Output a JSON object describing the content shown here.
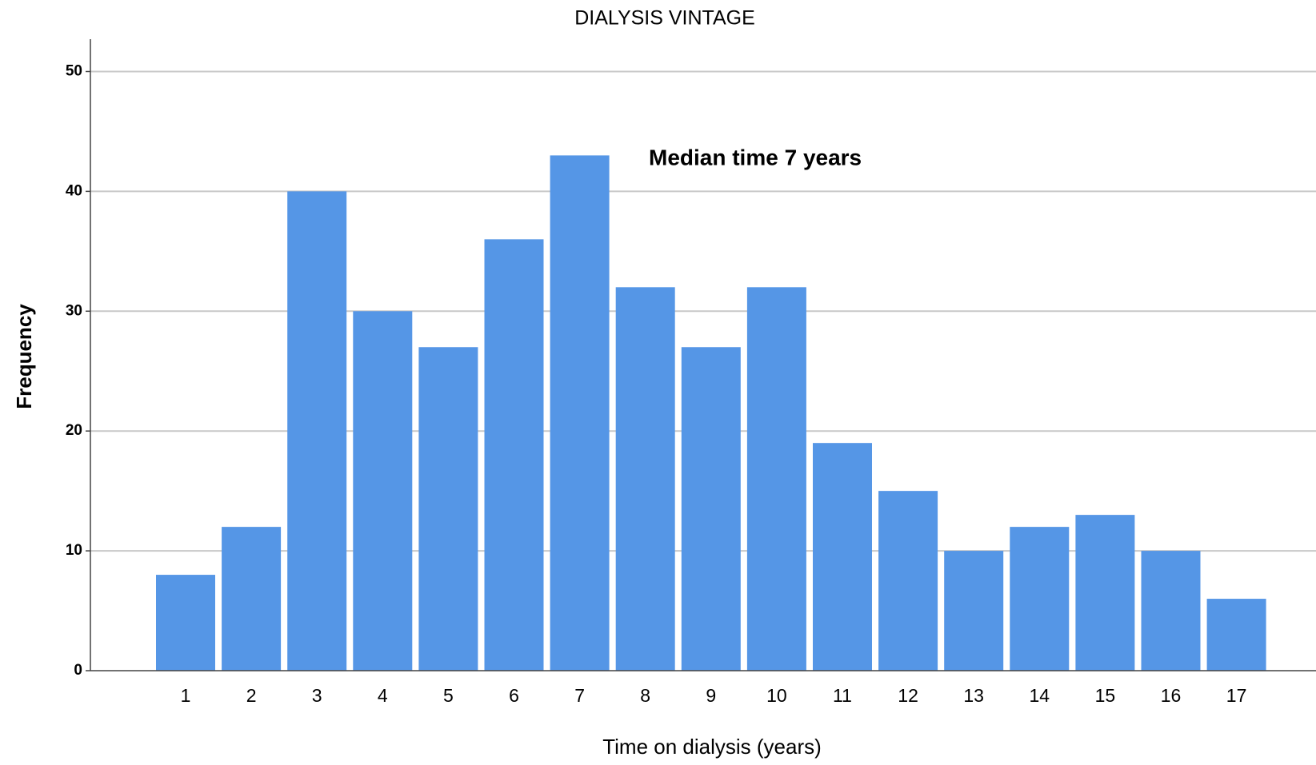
{
  "chart_data": {
    "type": "bar",
    "title": "DIALYSIS VINTAGE",
    "x_label": "Time on dialysis (years)",
    "y_label": "Frequency",
    "annotation": "Median time 7 years",
    "categories": [
      "1",
      "2",
      "3",
      "4",
      "5",
      "6",
      "7",
      "8",
      "9",
      "10",
      "11",
      "12",
      "13",
      "14",
      "15",
      "16",
      "17"
    ],
    "values": [
      8,
      12,
      40,
      30,
      27,
      36,
      43,
      32,
      27,
      32,
      19,
      15,
      10,
      12,
      13,
      10,
      6
    ],
    "color": "#5596e6",
    "ylim": [
      0,
      52.7
    ],
    "yticks": [
      0,
      10,
      20,
      30,
      40,
      50
    ],
    "grid": true
  }
}
